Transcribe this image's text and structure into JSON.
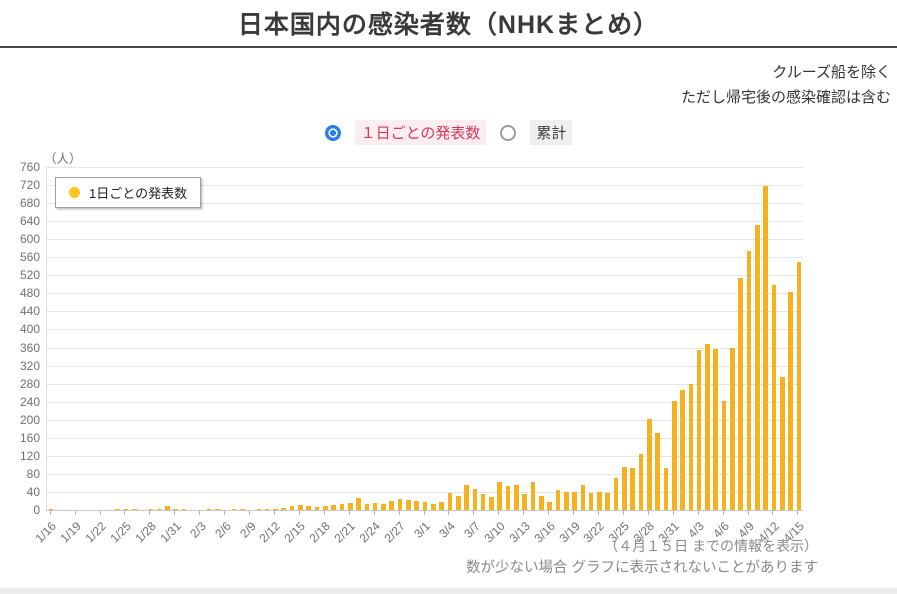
{
  "header": {
    "title": "日本国内の感染者数（NHKまとめ）"
  },
  "annotations": {
    "line1": "クルーズ船を除く",
    "line2": "ただし帰宅後の感染確認は含む"
  },
  "controls": {
    "daily_label": "１日ごとの発表数",
    "cumulative_label": "累計",
    "selected": "daily",
    "accent_blue": "#2B7CE9",
    "selected_label_color": "#D5365E",
    "selected_label_bg": "#FCEDF0",
    "unselected_label_bg": "#EFEFEF",
    "unselected_label_color": "#3C3C3C"
  },
  "chart_data": {
    "type": "bar",
    "title": "日本国内の感染者数（NHKまとめ）",
    "unit_label": "（人）",
    "legend": "1日ごとの発表数",
    "legend_position": "top-left",
    "grid": true,
    "bar_color": "#F5B122",
    "legend_dot_color": "#FFC61E",
    "ylim": [
      0,
      760
    ],
    "y_tick_step": 40,
    "x_tick_every": 3,
    "x_tick_labels": [
      "1/16",
      "1/19",
      "1/22",
      "1/25",
      "1/28",
      "1/31",
      "2/3",
      "2/6",
      "2/9",
      "2/12",
      "2/15",
      "2/18",
      "2/21",
      "2/24",
      "2/27",
      "3/1",
      "3/4",
      "3/7",
      "3/10",
      "3/13",
      "3/16",
      "3/19",
      "3/22",
      "3/25",
      "3/28",
      "3/31",
      "4/3",
      "4/6",
      "4/9",
      "4/12",
      "4/15"
    ],
    "dates": [
      "1/16",
      "1/17",
      "1/18",
      "1/19",
      "1/20",
      "1/21",
      "1/22",
      "1/23",
      "1/24",
      "1/25",
      "1/26",
      "1/27",
      "1/28",
      "1/29",
      "1/30",
      "1/31",
      "2/1",
      "2/2",
      "2/3",
      "2/4",
      "2/5",
      "2/6",
      "2/7",
      "2/8",
      "2/9",
      "2/10",
      "2/11",
      "2/12",
      "2/13",
      "2/14",
      "2/15",
      "2/16",
      "2/17",
      "2/18",
      "2/19",
      "2/20",
      "2/21",
      "2/22",
      "2/23",
      "2/24",
      "2/25",
      "2/26",
      "2/27",
      "2/28",
      "2/29",
      "3/1",
      "3/2",
      "3/3",
      "3/4",
      "3/5",
      "3/6",
      "3/7",
      "3/8",
      "3/9",
      "3/10",
      "3/11",
      "3/12",
      "3/13",
      "3/14",
      "3/15",
      "3/16",
      "3/17",
      "3/18",
      "3/19",
      "3/20",
      "3/21",
      "3/22",
      "3/23",
      "3/24",
      "3/25",
      "3/26",
      "3/27",
      "3/28",
      "3/29",
      "3/30",
      "3/31",
      "4/1",
      "4/2",
      "4/3",
      "4/4",
      "4/5",
      "4/6",
      "4/7",
      "4/8",
      "4/9",
      "4/10",
      "4/11",
      "4/12",
      "4/13",
      "4/14",
      "4/15"
    ],
    "values": [
      1,
      0,
      0,
      0,
      0,
      0,
      0,
      0,
      1,
      1,
      1,
      0,
      2,
      1,
      8,
      2,
      2,
      0,
      0,
      2,
      2,
      0,
      1,
      1,
      0,
      1,
      2,
      1,
      4,
      9,
      12,
      10,
      7,
      9,
      11,
      13,
      16,
      27,
      13,
      15,
      13,
      20,
      24,
      22,
      19,
      17,
      14,
      18,
      37,
      31,
      55,
      46,
      35,
      28,
      61,
      53,
      55,
      35,
      63,
      30,
      18,
      44,
      40,
      41,
      55,
      38,
      41,
      38,
      70,
      95,
      93,
      124,
      201,
      170,
      94,
      242,
      266,
      279,
      355,
      367,
      356,
      242,
      359,
      515,
      575,
      632,
      719,
      499,
      294,
      483,
      549
    ]
  },
  "footer": {
    "note1": "（４月１５日 までの情報を表示）",
    "note2": "数が少ない場合 グラフに表示されないことがあります"
  }
}
